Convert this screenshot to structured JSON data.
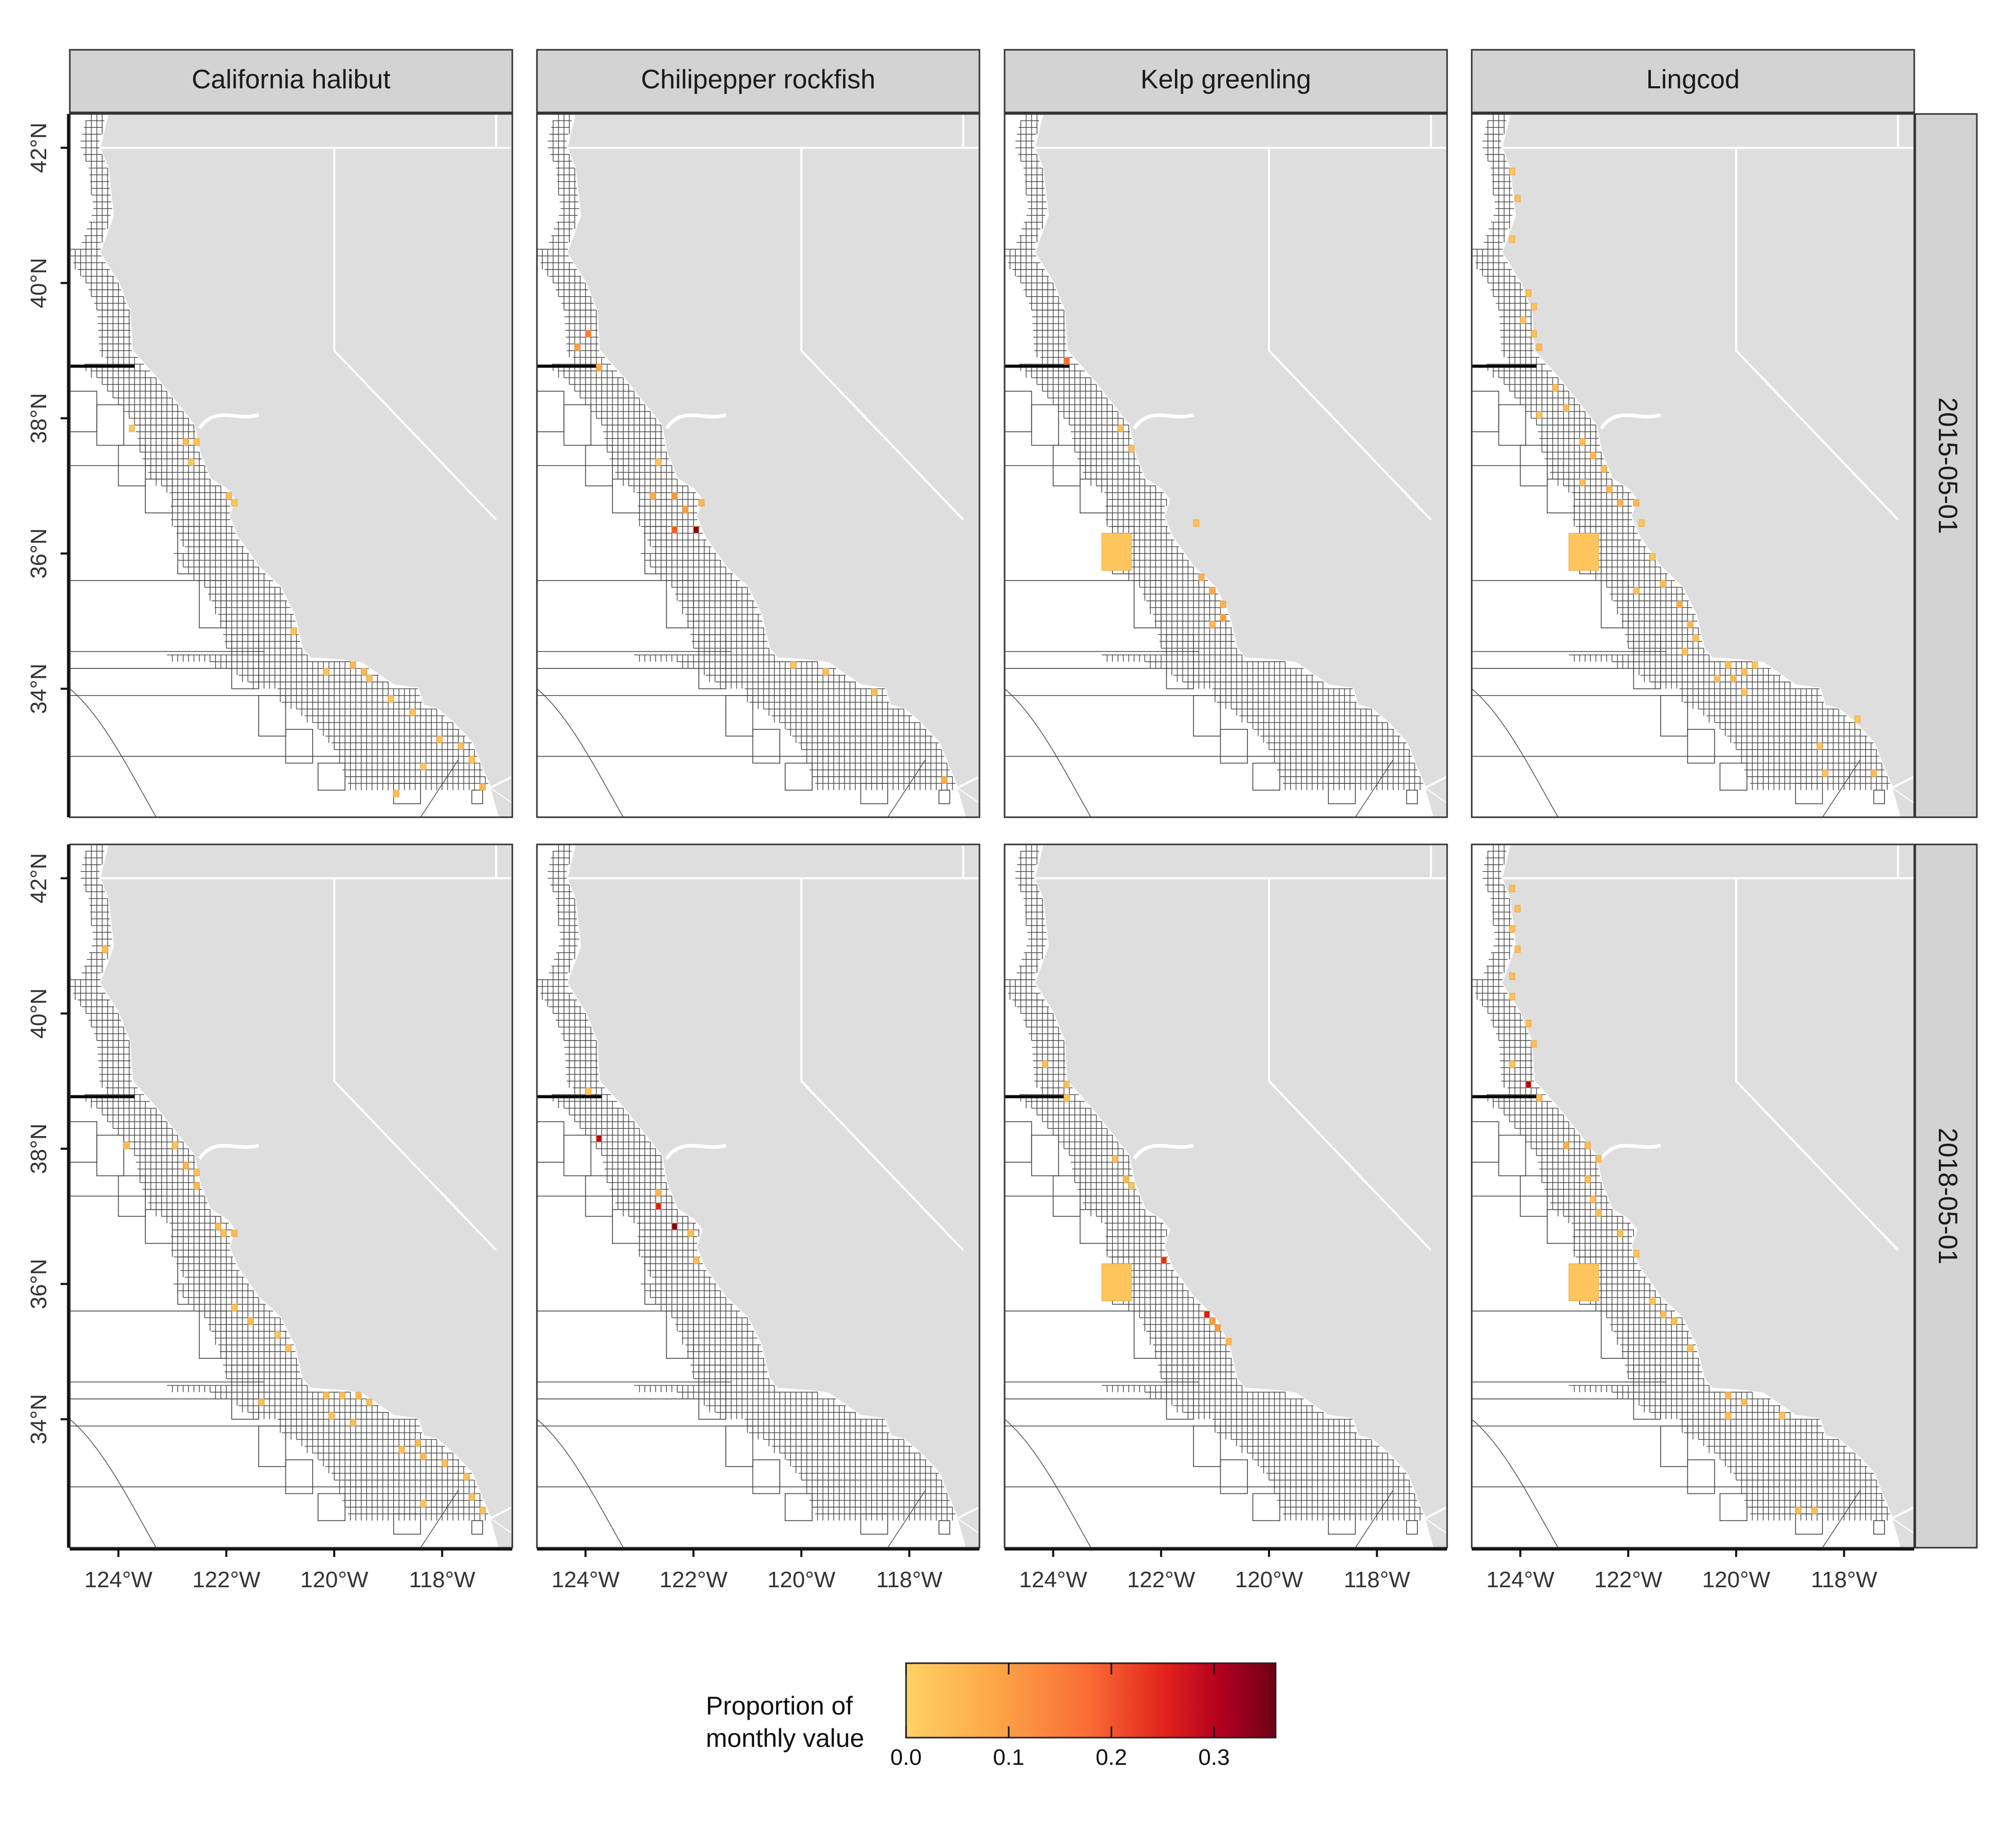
{
  "columns": [
    "California halibut",
    "Chilipepper rockfish",
    "Kelp greenling",
    "Lingcod"
  ],
  "rows": [
    "2015-05-01",
    "2018-05-01"
  ],
  "axes": {
    "x_ticks": [
      "124°W",
      "122°W",
      "120°W",
      "118°W"
    ],
    "y_ticks": [
      "42°N",
      "40°N",
      "38°N",
      "36°N",
      "34°N"
    ]
  },
  "legend": {
    "title_line1": "Proportion of",
    "title_line2": "monthly value",
    "ticks": [
      "0.0",
      "0.1",
      "0.2",
      "0.3"
    ],
    "tick_values": [
      0.0,
      0.1,
      0.2,
      0.3
    ],
    "max": 0.36,
    "colors": [
      "#ffd266",
      "#fca446",
      "#f96a35",
      "#e2221c",
      "#b2001f",
      "#6e0017"
    ]
  },
  "colors": {
    "land": "#dedede",
    "strip": "#d3d3d3",
    "grid_line": "#222222",
    "state_border": "#ffffff"
  },
  "map_data": {
    "value_scale": "proportion of monthly value",
    "panels": [
      {
        "species": "California halibut",
        "date": "2015-05-01",
        "cells": [
          {
            "lon": -123.8,
            "lat": 37.9,
            "v": 0.02
          },
          {
            "lon": -122.8,
            "lat": 37.7,
            "v": 0.03
          },
          {
            "lon": -122.6,
            "lat": 37.7,
            "v": 0.03
          },
          {
            "lon": -122.7,
            "lat": 37.4,
            "v": 0.02
          },
          {
            "lon": -122.0,
            "lat": 36.9,
            "v": 0.03
          },
          {
            "lon": -121.9,
            "lat": 36.8,
            "v": 0.02
          },
          {
            "lon": -120.8,
            "lat": 34.9,
            "v": 0.02
          },
          {
            "lon": -120.2,
            "lat": 34.3,
            "v": 0.02
          },
          {
            "lon": -119.7,
            "lat": 34.4,
            "v": 0.04
          },
          {
            "lon": -119.5,
            "lat": 34.3,
            "v": 0.04
          },
          {
            "lon": -119.4,
            "lat": 34.2,
            "v": 0.03
          },
          {
            "lon": -119.0,
            "lat": 33.9,
            "v": 0.02
          },
          {
            "lon": -118.6,
            "lat": 33.7,
            "v": 0.03
          },
          {
            "lon": -118.1,
            "lat": 33.3,
            "v": 0.02
          },
          {
            "lon": -118.4,
            "lat": 32.9,
            "v": 0.02
          },
          {
            "lon": -117.7,
            "lat": 33.2,
            "v": 0.03
          },
          {
            "lon": -117.3,
            "lat": 32.6,
            "v": 0.04
          },
          {
            "lon": -118.9,
            "lat": 32.5,
            "v": 0.03
          },
          {
            "lon": -117.5,
            "lat": 33.0,
            "v": 0.02
          }
        ]
      },
      {
        "species": "Chilipepper rockfish",
        "date": "2015-05-01",
        "cells": [
          {
            "lon": -124.0,
            "lat": 39.3,
            "v": 0.12
          },
          {
            "lon": -124.2,
            "lat": 39.1,
            "v": 0.08
          },
          {
            "lon": -123.8,
            "lat": 38.8,
            "v": 0.06
          },
          {
            "lon": -122.7,
            "lat": 37.4,
            "v": 0.02
          },
          {
            "lon": -122.8,
            "lat": 36.9,
            "v": 0.06
          },
          {
            "lon": -122.4,
            "lat": 36.9,
            "v": 0.09
          },
          {
            "lon": -122.2,
            "lat": 36.7,
            "v": 0.08
          },
          {
            "lon": -121.9,
            "lat": 36.8,
            "v": 0.04
          },
          {
            "lon": -122.4,
            "lat": 36.4,
            "v": 0.16
          },
          {
            "lon": -122.0,
            "lat": 36.4,
            "v": 0.33
          },
          {
            "lon": -120.2,
            "lat": 34.4,
            "v": 0.02
          },
          {
            "lon": -119.6,
            "lat": 34.3,
            "v": 0.03
          },
          {
            "lon": -118.7,
            "lat": 34.0,
            "v": 0.03
          },
          {
            "lon": -117.4,
            "lat": 32.7,
            "v": 0.06
          }
        ]
      },
      {
        "species": "Kelp greenling",
        "date": "2015-05-01",
        "cells": [
          {
            "lon": -123.8,
            "lat": 38.9,
            "v": 0.14
          },
          {
            "lon": -122.8,
            "lat": 37.9,
            "v": 0.03
          },
          {
            "lon": -122.6,
            "lat": 37.6,
            "v": 0.03
          },
          {
            "lon": -123.1,
            "lat": 36.3,
            "v": 0.02,
            "big": true
          },
          {
            "lon": -121.4,
            "lat": 36.5,
            "v": 0.03
          },
          {
            "lon": -121.3,
            "lat": 35.7,
            "v": 0.05
          },
          {
            "lon": -121.1,
            "lat": 35.5,
            "v": 0.06
          },
          {
            "lon": -120.9,
            "lat": 35.3,
            "v": 0.05
          },
          {
            "lon": -120.9,
            "lat": 35.1,
            "v": 0.08
          },
          {
            "lon": -121.1,
            "lat": 35.0,
            "v": 0.04
          }
        ]
      },
      {
        "species": "Lingcod",
        "date": "2015-05-01",
        "cells": [
          {
            "lon": -124.2,
            "lat": 41.7,
            "v": 0.02
          },
          {
            "lon": -124.1,
            "lat": 41.3,
            "v": 0.03
          },
          {
            "lon": -124.2,
            "lat": 40.7,
            "v": 0.02
          },
          {
            "lon": -123.9,
            "lat": 39.9,
            "v": 0.03
          },
          {
            "lon": -123.8,
            "lat": 39.7,
            "v": 0.03
          },
          {
            "lon": -124.0,
            "lat": 39.5,
            "v": 0.02
          },
          {
            "lon": -123.8,
            "lat": 39.3,
            "v": 0.03
          },
          {
            "lon": -123.7,
            "lat": 39.1,
            "v": 0.04
          },
          {
            "lon": -123.4,
            "lat": 38.5,
            "v": 0.03
          },
          {
            "lon": -123.7,
            "lat": 38.1,
            "v": 0.02
          },
          {
            "lon": -123.2,
            "lat": 38.2,
            "v": 0.03
          },
          {
            "lon": -122.9,
            "lat": 37.7,
            "v": 0.03
          },
          {
            "lon": -122.7,
            "lat": 37.5,
            "v": 0.04
          },
          {
            "lon": -122.5,
            "lat": 37.3,
            "v": 0.03
          },
          {
            "lon": -122.9,
            "lat": 37.1,
            "v": 0.03
          },
          {
            "lon": -122.4,
            "lat": 37.0,
            "v": 0.04
          },
          {
            "lon": -122.2,
            "lat": 36.8,
            "v": 0.05
          },
          {
            "lon": -121.9,
            "lat": 36.8,
            "v": 0.04
          },
          {
            "lon": -123.1,
            "lat": 36.3,
            "v": 0.02,
            "big": true
          },
          {
            "lon": -121.8,
            "lat": 36.5,
            "v": 0.02
          },
          {
            "lon": -121.6,
            "lat": 36.0,
            "v": 0.02
          },
          {
            "lon": -121.9,
            "lat": 35.5,
            "v": 0.02
          },
          {
            "lon": -121.4,
            "lat": 35.6,
            "v": 0.03
          },
          {
            "lon": -121.1,
            "lat": 35.3,
            "v": 0.06
          },
          {
            "lon": -120.9,
            "lat": 35.0,
            "v": 0.04
          },
          {
            "lon": -120.8,
            "lat": 34.8,
            "v": 0.03
          },
          {
            "lon": -121.0,
            "lat": 34.6,
            "v": 0.02
          },
          {
            "lon": -120.2,
            "lat": 34.4,
            "v": 0.03
          },
          {
            "lon": -119.9,
            "lat": 34.3,
            "v": 0.03
          },
          {
            "lon": -120.1,
            "lat": 34.2,
            "v": 0.04
          },
          {
            "lon": -120.4,
            "lat": 34.2,
            "v": 0.02
          },
          {
            "lon": -119.7,
            "lat": 34.4,
            "v": 0.02
          },
          {
            "lon": -119.9,
            "lat": 34.0,
            "v": 0.02
          },
          {
            "lon": -117.8,
            "lat": 33.6,
            "v": 0.02
          },
          {
            "lon": -118.5,
            "lat": 33.2,
            "v": 0.02
          },
          {
            "lon": -118.4,
            "lat": 32.8,
            "v": 0.02
          },
          {
            "lon": -117.5,
            "lat": 32.8,
            "v": 0.03
          }
        ]
      },
      {
        "species": "California halibut",
        "date": "2018-05-01",
        "cells": [
          {
            "lon": -124.3,
            "lat": 41.0,
            "v": 0.03
          },
          {
            "lon": -123.9,
            "lat": 38.1,
            "v": 0.03
          },
          {
            "lon": -123.0,
            "lat": 38.1,
            "v": 0.02
          },
          {
            "lon": -122.8,
            "lat": 37.8,
            "v": 0.04
          },
          {
            "lon": -122.6,
            "lat": 37.7,
            "v": 0.03
          },
          {
            "lon": -122.6,
            "lat": 37.5,
            "v": 0.04
          },
          {
            "lon": -122.2,
            "lat": 36.9,
            "v": 0.03
          },
          {
            "lon": -122.1,
            "lat": 36.8,
            "v": 0.03
          },
          {
            "lon": -121.9,
            "lat": 36.8,
            "v": 0.04
          },
          {
            "lon": -121.9,
            "lat": 35.7,
            "v": 0.02
          },
          {
            "lon": -121.6,
            "lat": 35.5,
            "v": 0.02
          },
          {
            "lon": -121.1,
            "lat": 35.3,
            "v": 0.02
          },
          {
            "lon": -120.9,
            "lat": 35.1,
            "v": 0.03
          },
          {
            "lon": -121.4,
            "lat": 34.3,
            "v": 0.03
          },
          {
            "lon": -120.2,
            "lat": 34.4,
            "v": 0.03
          },
          {
            "lon": -119.9,
            "lat": 34.4,
            "v": 0.03
          },
          {
            "lon": -119.6,
            "lat": 34.4,
            "v": 0.04
          },
          {
            "lon": -119.4,
            "lat": 34.3,
            "v": 0.03
          },
          {
            "lon": -120.1,
            "lat": 34.1,
            "v": 0.02
          },
          {
            "lon": -119.7,
            "lat": 34.0,
            "v": 0.03
          },
          {
            "lon": -118.8,
            "lat": 33.6,
            "v": 0.03
          },
          {
            "lon": -118.5,
            "lat": 33.7,
            "v": 0.04
          },
          {
            "lon": -118.4,
            "lat": 33.5,
            "v": 0.04
          },
          {
            "lon": -118.0,
            "lat": 33.4,
            "v": 0.03
          },
          {
            "lon": -117.6,
            "lat": 33.2,
            "v": 0.03
          },
          {
            "lon": -117.5,
            "lat": 32.9,
            "v": 0.03
          },
          {
            "lon": -117.3,
            "lat": 32.7,
            "v": 0.03
          },
          {
            "lon": -118.4,
            "lat": 32.8,
            "v": 0.02
          }
        ]
      },
      {
        "species": "Chilipepper rockfish",
        "date": "2018-05-01",
        "cells": [
          {
            "lon": -124.0,
            "lat": 38.9,
            "v": 0.02
          },
          {
            "lon": -123.8,
            "lat": 38.2,
            "v": 0.27
          },
          {
            "lon": -122.7,
            "lat": 37.4,
            "v": 0.04
          },
          {
            "lon": -122.7,
            "lat": 37.2,
            "v": 0.22
          },
          {
            "lon": -122.4,
            "lat": 36.9,
            "v": 0.33
          },
          {
            "lon": -122.1,
            "lat": 36.8,
            "v": 0.03
          },
          {
            "lon": -122.0,
            "lat": 36.4,
            "v": 0.03
          }
        ]
      },
      {
        "species": "Kelp greenling",
        "date": "2018-05-01",
        "cells": [
          {
            "lon": -124.2,
            "lat": 39.3,
            "v": 0.03
          },
          {
            "lon": -123.8,
            "lat": 39.0,
            "v": 0.03
          },
          {
            "lon": -123.8,
            "lat": 38.8,
            "v": 0.02
          },
          {
            "lon": -122.9,
            "lat": 37.9,
            "v": 0.03
          },
          {
            "lon": -122.7,
            "lat": 37.6,
            "v": 0.04
          },
          {
            "lon": -122.6,
            "lat": 37.5,
            "v": 0.02
          },
          {
            "lon": -123.1,
            "lat": 36.3,
            "v": 0.02,
            "big": true
          },
          {
            "lon": -122.0,
            "lat": 36.4,
            "v": 0.2
          },
          {
            "lon": -121.2,
            "lat": 35.6,
            "v": 0.23
          },
          {
            "lon": -121.1,
            "lat": 35.5,
            "v": 0.08
          },
          {
            "lon": -121.0,
            "lat": 35.4,
            "v": 0.09
          },
          {
            "lon": -120.8,
            "lat": 35.2,
            "v": 0.04
          }
        ]
      },
      {
        "species": "Lingcod",
        "date": "2018-05-01",
        "cells": [
          {
            "lon": -124.2,
            "lat": 41.9,
            "v": 0.03
          },
          {
            "lon": -124.1,
            "lat": 41.6,
            "v": 0.03
          },
          {
            "lon": -124.2,
            "lat": 41.3,
            "v": 0.03
          },
          {
            "lon": -124.1,
            "lat": 41.0,
            "v": 0.03
          },
          {
            "lon": -124.2,
            "lat": 40.6,
            "v": 0.03
          },
          {
            "lon": -124.2,
            "lat": 40.3,
            "v": 0.02
          },
          {
            "lon": -123.9,
            "lat": 39.9,
            "v": 0.03
          },
          {
            "lon": -123.8,
            "lat": 39.6,
            "v": 0.03
          },
          {
            "lon": -124.2,
            "lat": 39.3,
            "v": 0.02
          },
          {
            "lon": -123.9,
            "lat": 39.0,
            "v": 0.28
          },
          {
            "lon": -123.7,
            "lat": 38.8,
            "v": 0.03
          },
          {
            "lon": -123.2,
            "lat": 38.1,
            "v": 0.05
          },
          {
            "lon": -122.8,
            "lat": 38.1,
            "v": 0.03
          },
          {
            "lon": -122.6,
            "lat": 37.9,
            "v": 0.03
          },
          {
            "lon": -122.8,
            "lat": 37.6,
            "v": 0.03
          },
          {
            "lon": -122.7,
            "lat": 37.3,
            "v": 0.03
          },
          {
            "lon": -122.6,
            "lat": 37.1,
            "v": 0.03
          },
          {
            "lon": -122.2,
            "lat": 36.8,
            "v": 0.03
          },
          {
            "lon": -123.1,
            "lat": 36.3,
            "v": 0.02,
            "big": true
          },
          {
            "lon": -121.9,
            "lat": 36.5,
            "v": 0.02
          },
          {
            "lon": -121.6,
            "lat": 35.8,
            "v": 0.02
          },
          {
            "lon": -121.4,
            "lat": 35.6,
            "v": 0.03
          },
          {
            "lon": -121.2,
            "lat": 35.5,
            "v": 0.03
          },
          {
            "lon": -120.9,
            "lat": 35.1,
            "v": 0.03
          },
          {
            "lon": -120.2,
            "lat": 34.4,
            "v": 0.04
          },
          {
            "lon": -119.9,
            "lat": 34.3,
            "v": 0.03
          },
          {
            "lon": -120.2,
            "lat": 34.1,
            "v": 0.03
          },
          {
            "lon": -119.2,
            "lat": 34.1,
            "v": 0.02
          },
          {
            "lon": -118.9,
            "lat": 32.7,
            "v": 0.03
          },
          {
            "lon": -118.6,
            "lat": 32.7,
            "v": 0.03
          }
        ]
      }
    ]
  }
}
